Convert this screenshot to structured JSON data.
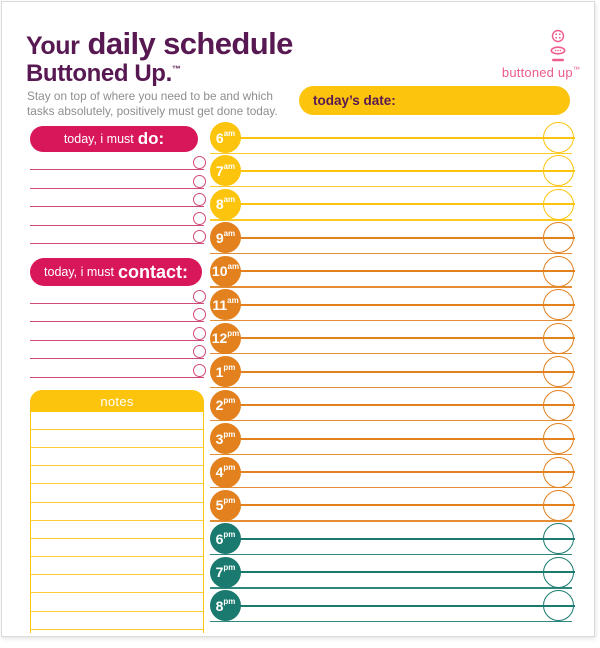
{
  "colors": {
    "purple": "#581952",
    "crimson": "#D8175B",
    "crimson_line": "#D04A76",
    "yellow": "#FCC40D",
    "orange": "#E2811E",
    "teal": "#1A7A6F",
    "logo_pink": "#ED5C8B",
    "subtitle_gray": "#8E8E8E"
  },
  "header": {
    "title_prefix": "Your",
    "title_main": "daily schedule",
    "brand": "Buttoned Up.",
    "brand_tm": "™",
    "subtitle_line1": "Stay on top of where you need to be and which",
    "subtitle_line2": "tasks absolutely, positively must get done today."
  },
  "logo": {
    "text": "buttoned up",
    "tm": "™"
  },
  "date_banner": {
    "label": "today’s date:"
  },
  "todo_section": {
    "label_prefix": "today, i must",
    "label_emphasis": "do:",
    "line_count": 5
  },
  "contact_section": {
    "label_prefix": "today, i must",
    "label_emphasis": "contact:",
    "line_count": 5
  },
  "notes_section": {
    "label": "notes",
    "line_count": 12
  },
  "schedule": {
    "slots": [
      {
        "hour": "6",
        "meridiem": "am",
        "color": "#FCC40D"
      },
      {
        "hour": "7",
        "meridiem": "am",
        "color": "#FCC40D"
      },
      {
        "hour": "8",
        "meridiem": "am",
        "color": "#FCC40D"
      },
      {
        "hour": "9",
        "meridiem": "am",
        "color": "#E2811E"
      },
      {
        "hour": "10",
        "meridiem": "am",
        "color": "#E2811E"
      },
      {
        "hour": "11",
        "meridiem": "am",
        "color": "#E2811E"
      },
      {
        "hour": "12",
        "meridiem": "pm",
        "color": "#E2811E"
      },
      {
        "hour": "1",
        "meridiem": "pm",
        "color": "#E2811E"
      },
      {
        "hour": "2",
        "meridiem": "pm",
        "color": "#E2811E"
      },
      {
        "hour": "3",
        "meridiem": "pm",
        "color": "#E2811E"
      },
      {
        "hour": "4",
        "meridiem": "pm",
        "color": "#E2811E"
      },
      {
        "hour": "5",
        "meridiem": "pm",
        "color": "#E2811E"
      },
      {
        "hour": "6",
        "meridiem": "pm",
        "color": "#1A7A6F"
      },
      {
        "hour": "7",
        "meridiem": "pm",
        "color": "#1A7A6F"
      },
      {
        "hour": "8",
        "meridiem": "pm",
        "color": "#1A7A6F"
      }
    ]
  }
}
